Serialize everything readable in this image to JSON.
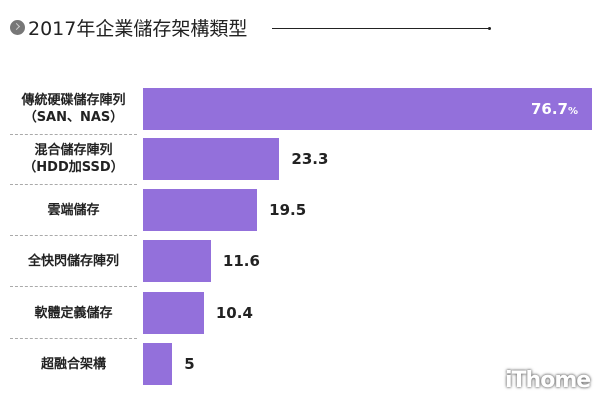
{
  "chart_data": {
    "type": "bar",
    "orientation": "horizontal",
    "title": "2017年企業儲存架構類型",
    "categories": [
      [
        "傳統硬碟儲存陣列",
        "（SAN、NAS）"
      ],
      [
        "混合儲存陣列",
        "（HDD加SSD）"
      ],
      [
        "雲端儲存"
      ],
      [
        "全快閃儲存陣列"
      ],
      [
        "軟體定義儲存"
      ],
      [
        "超融合架構"
      ]
    ],
    "values": [
      76.7,
      23.3,
      19.5,
      11.6,
      10.4,
      5
    ],
    "value_labels": [
      "76.7",
      "23.3",
      "19.5",
      "11.6",
      "10.4",
      "5"
    ],
    "unit": "%",
    "xlim": [
      0,
      76.7
    ],
    "bar_color": "#9370db",
    "grid": false
  },
  "watermark": "iThome"
}
